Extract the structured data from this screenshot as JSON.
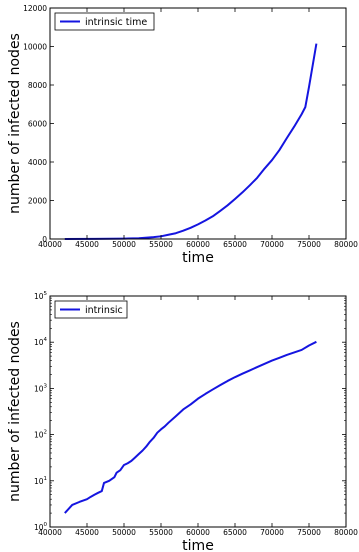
{
  "chart_data": [
    {
      "type": "line",
      "title": "",
      "xlabel": "time",
      "ylabel": "number of infected nodes",
      "xlim": [
        40000,
        80000
      ],
      "ylim": [
        0,
        12000
      ],
      "yscale": "linear",
      "grid": false,
      "legend_position": "top-left",
      "x_ticks": [
        "40000",
        "45000",
        "50000",
        "55000",
        "60000",
        "65000",
        "70000",
        "75000",
        "80000"
      ],
      "y_ticks": [
        "0",
        "2000",
        "4000",
        "6000",
        "8000",
        "10000",
        "12000"
      ],
      "series": [
        {
          "name": "intrinsic time",
          "color": "#1515e0",
          "x": [
            42000,
            46000,
            50000,
            52000,
            54000,
            55000,
            56000,
            57000,
            58000,
            59000,
            60000,
            61000,
            62000,
            63000,
            64000,
            65000,
            66000,
            67000,
            68000,
            69000,
            70000,
            71000,
            72000,
            73000,
            74000,
            74500,
            75000,
            76000
          ],
          "y": [
            2,
            5,
            20,
            40,
            100,
            140,
            220,
            300,
            430,
            580,
            760,
            960,
            1180,
            1460,
            1750,
            2080,
            2420,
            2790,
            3180,
            3660,
            4100,
            4620,
            5240,
            5840,
            6480,
            6850,
            7900,
            10150
          ]
        }
      ]
    },
    {
      "type": "line",
      "title": "",
      "xlabel": "time",
      "ylabel": "number of infected nodes",
      "xlim": [
        40000,
        80000
      ],
      "ylim": [
        1,
        100000
      ],
      "yscale": "log",
      "grid": false,
      "legend_position": "top-left",
      "x_ticks": [
        "40000",
        "45000",
        "50000",
        "55000",
        "60000",
        "65000",
        "70000",
        "75000",
        "80000"
      ],
      "y_ticks": [
        "10^0",
        "10^1",
        "10^2",
        "10^3",
        "10^4",
        "10^5"
      ],
      "series": [
        {
          "name": "intrinsic",
          "color": "#1515e0",
          "x": [
            42000,
            43000,
            44000,
            45000,
            45500,
            46000,
            46500,
            47000,
            47300,
            48000,
            48700,
            49000,
            49500,
            50000,
            50500,
            51000,
            51500,
            52000,
            52500,
            53000,
            53500,
            54000,
            54500,
            55000,
            55500,
            56000,
            57000,
            58000,
            59000,
            60000,
            61000,
            62000,
            63000,
            64000,
            65000,
            66000,
            67000,
            68000,
            69000,
            70000,
            71000,
            72000,
            73000,
            74000,
            75000,
            76000
          ],
          "y": [
            2,
            3,
            3.5,
            4,
            4.5,
            5,
            5.5,
            6,
            9,
            10,
            12,
            15,
            17,
            22,
            24,
            27,
            32,
            38,
            45,
            55,
            70,
            85,
            110,
            130,
            150,
            180,
            250,
            350,
            450,
            600,
            760,
            950,
            1180,
            1450,
            1750,
            2080,
            2450,
            2900,
            3400,
            4000,
            4600,
            5300,
            6000,
            6800,
            8500,
            10200
          ]
        }
      ]
    }
  ]
}
